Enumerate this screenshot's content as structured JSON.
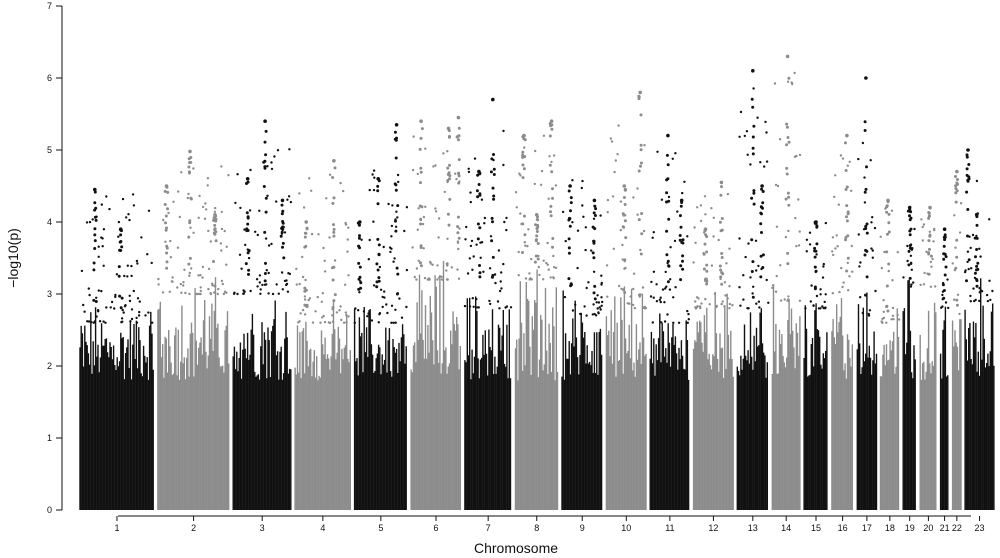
{
  "chart_data": {
    "type": "scatter",
    "title": "",
    "xlabel": "Chromosome",
    "ylabel": "−log10(p)",
    "ylim": [
      0,
      7
    ],
    "yticks": [
      "0",
      "1",
      "2",
      "3",
      "4",
      "5",
      "6",
      "7"
    ],
    "grid": false,
    "legend": "none",
    "colors": {
      "odd": "#111111",
      "even": "#8c8c8c"
    },
    "chromosomes": [
      {
        "label": "1",
        "start": 0.0,
        "end": 4.67,
        "color": "odd",
        "base": 3.0,
        "max": 4.62,
        "peaks": [
          [
            0.2,
            4.45
          ],
          [
            0.55,
            3.9
          ]
        ]
      },
      {
        "label": "2",
        "start": 4.67,
        "end": 9.18,
        "color": "even",
        "base": 3.4,
        "max": 4.98,
        "peaks": [
          [
            0.12,
            4.5
          ],
          [
            0.45,
            4.98
          ],
          [
            0.8,
            4.1
          ]
        ]
      },
      {
        "label": "3",
        "start": 9.18,
        "end": 12.89,
        "color": "odd",
        "base": 3.4,
        "max": 5.4,
        "peaks": [
          [
            0.25,
            4.6
          ],
          [
            0.55,
            5.4
          ],
          [
            0.85,
            4.3
          ]
        ]
      },
      {
        "label": "4",
        "start": 12.89,
        "end": 16.45,
        "color": "even",
        "base": 3.0,
        "max": 5.0,
        "peaks": [
          [
            0.2,
            4.0
          ],
          [
            0.7,
            4.85
          ]
        ]
      },
      {
        "label": "5",
        "start": 16.45,
        "end": 19.84,
        "color": "odd",
        "base": 3.0,
        "max": 5.35,
        "peaks": [
          [
            0.1,
            4.0
          ],
          [
            0.45,
            4.6
          ],
          [
            0.8,
            5.35
          ]
        ]
      },
      {
        "label": "6",
        "start": 19.84,
        "end": 23.06,
        "color": "even",
        "base": 3.6,
        "max": 5.45,
        "peaks": [
          [
            0.2,
            5.4
          ],
          [
            0.75,
            5.3
          ],
          [
            0.95,
            5.45
          ]
        ]
      },
      {
        "label": "7",
        "start": 23.06,
        "end": 26.09,
        "color": "odd",
        "base": 3.2,
        "max": 5.7,
        "peaks": [
          [
            0.3,
            4.7
          ],
          [
            0.6,
            5.7
          ]
        ]
      },
      {
        "label": "8",
        "start": 26.09,
        "end": 28.88,
        "color": "even",
        "base": 3.6,
        "max": 5.4,
        "peaks": [
          [
            0.2,
            5.2
          ],
          [
            0.5,
            4.1
          ],
          [
            0.85,
            5.4
          ]
        ]
      },
      {
        "label": "9",
        "start": 28.88,
        "end": 31.54,
        "color": "odd",
        "base": 3.1,
        "max": 4.9,
        "peaks": [
          [
            0.2,
            4.5
          ],
          [
            0.8,
            4.3
          ]
        ]
      },
      {
        "label": "10",
        "start": 31.54,
        "end": 34.16,
        "color": "even",
        "base": 3.2,
        "max": 5.8,
        "peaks": [
          [
            0.45,
            4.5
          ],
          [
            0.85,
            5.8
          ]
        ]
      },
      {
        "label": "11",
        "start": 34.16,
        "end": 36.76,
        "color": "odd",
        "base": 3.0,
        "max": 5.2,
        "peaks": [
          [
            0.45,
            5.2
          ],
          [
            0.8,
            4.3
          ]
        ]
      },
      {
        "label": "12",
        "start": 36.76,
        "end": 39.38,
        "color": "even",
        "base": 3.2,
        "max": 4.6,
        "peaks": [
          [
            0.3,
            3.9
          ],
          [
            0.7,
            4.55
          ]
        ]
      },
      {
        "label": "13",
        "start": 39.38,
        "end": 41.48,
        "color": "odd",
        "base": 3.2,
        "max": 6.1,
        "peaks": [
          [
            0.5,
            6.1
          ],
          [
            0.8,
            4.5
          ]
        ]
      },
      {
        "label": "14",
        "start": 41.48,
        "end": 43.38,
        "color": "even",
        "base": 3.3,
        "max": 6.3,
        "peaks": [
          [
            0.55,
            6.3
          ]
        ]
      },
      {
        "label": "15",
        "start": 43.38,
        "end": 45.05,
        "color": "odd",
        "base": 3.2,
        "max": 4.2,
        "peaks": [
          [
            0.5,
            4.0
          ]
        ]
      },
      {
        "label": "16",
        "start": 45.05,
        "end": 46.57,
        "color": "even",
        "base": 3.4,
        "max": 5.2,
        "peaks": [
          [
            0.7,
            5.2
          ]
        ]
      },
      {
        "label": "17",
        "start": 46.57,
        "end": 47.96,
        "color": "odd",
        "base": 3.1,
        "max": 6.0,
        "peaks": [
          [
            0.45,
            6.0
          ]
        ]
      },
      {
        "label": "18",
        "start": 47.96,
        "end": 49.32,
        "color": "even",
        "base": 3.0,
        "max": 4.4,
        "peaks": [
          [
            0.4,
            4.3
          ]
        ]
      },
      {
        "label": "19",
        "start": 49.32,
        "end": 50.34,
        "color": "odd",
        "base": 3.5,
        "max": 4.2,
        "peaks": [
          [
            0.5,
            4.2
          ]
        ]
      },
      {
        "label": "20",
        "start": 50.34,
        "end": 51.56,
        "color": "even",
        "base": 3.5,
        "max": 4.3,
        "peaks": [
          [
            0.6,
            4.2
          ]
        ]
      },
      {
        "label": "21",
        "start": 51.56,
        "end": 52.28,
        "color": "odd",
        "base": 3.2,
        "max": 3.9,
        "peaks": [
          [
            0.5,
            3.9
          ]
        ]
      },
      {
        "label": "22",
        "start": 52.28,
        "end": 53.03,
        "color": "even",
        "base": 3.1,
        "max": 4.7,
        "peaks": [
          [
            0.5,
            4.7
          ]
        ]
      },
      {
        "label": "23",
        "start": 53.03,
        "end": 55.0,
        "color": "odd",
        "base": 3.3,
        "max": 5.0,
        "peaks": [
          [
            0.1,
            5.0
          ],
          [
            0.4,
            4.1
          ]
        ]
      }
    ]
  }
}
